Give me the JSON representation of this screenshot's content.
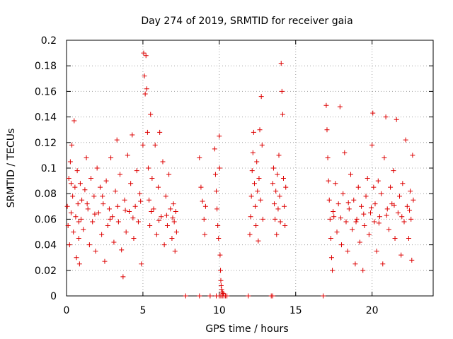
{
  "chart_data": {
    "type": "scatter",
    "title": "Day 274 of 2019, SRMTID for receiver gaia",
    "xlabel": "GPS time / hours",
    "ylabel": "SRMTID / TECUs",
    "xlim": [
      0,
      24
    ],
    "ylim": [
      0,
      0.2
    ],
    "x_ticks": [
      0,
      5,
      10,
      15,
      20
    ],
    "x_tick_labels": [
      "0",
      "5",
      "10",
      "15",
      "20"
    ],
    "y_ticks": [
      0,
      0.02,
      0.04,
      0.06,
      0.08,
      0.1,
      0.12,
      0.14,
      0.16,
      0.18,
      0.2
    ],
    "y_tick_labels": [
      "0",
      "0.02",
      "0.04",
      "0.06",
      "0.08",
      "0.1",
      "0.12",
      "0.14",
      "0.16",
      "0.18",
      "0.2"
    ],
    "grid": true,
    "marker": "+",
    "color": "#dd0000",
    "series": [
      {
        "name": "SRMTID",
        "points": [
          [
            0.05,
            0.07
          ],
          [
            0.1,
            0.055
          ],
          [
            0.15,
            0.092
          ],
          [
            0.2,
            0.04
          ],
          [
            0.25,
            0.105
          ],
          [
            0.3,
            0.065
          ],
          [
            0.35,
            0.118
          ],
          [
            0.4,
            0.078
          ],
          [
            0.45,
            0.05
          ],
          [
            0.5,
            0.137
          ],
          [
            0.55,
            0.085
          ],
          [
            0.6,
            0.062
          ],
          [
            0.65,
            0.03
          ],
          [
            0.7,
            0.098
          ],
          [
            0.75,
            0.072
          ],
          [
            0.8,
            0.045
          ],
          [
            0.85,
            0.025
          ],
          [
            0.9,
            0.088
          ],
          [
            0.95,
            0.06
          ],
          [
            1.0,
            0.075
          ],
          [
            1.1,
            0.052
          ],
          [
            1.2,
            0.083
          ],
          [
            1.3,
            0.108
          ],
          [
            1.4,
            0.068
          ],
          [
            1.5,
            0.04
          ],
          [
            1.6,
            0.092
          ],
          [
            1.7,
            0.058
          ],
          [
            1.8,
            0.078
          ],
          [
            1.9,
            0.035
          ],
          [
            2.0,
            0.1
          ],
          [
            2.1,
            0.065
          ],
          [
            2.2,
            0.085
          ],
          [
            2.3,
            0.048
          ],
          [
            2.4,
            0.072
          ],
          [
            2.5,
            0.027
          ],
          [
            2.6,
            0.09
          ],
          [
            2.7,
            0.055
          ],
          [
            2.8,
            0.068
          ],
          [
            2.9,
            0.108
          ],
          [
            3.0,
            0.062
          ],
          [
            3.1,
            0.042
          ],
          [
            3.2,
            0.082
          ],
          [
            3.3,
            0.122
          ],
          [
            3.4,
            0.058
          ],
          [
            3.5,
            0.095
          ],
          [
            3.6,
            0.036
          ],
          [
            3.7,
            0.015
          ],
          [
            3.8,
            0.075
          ],
          [
            3.9,
            0.05
          ],
          [
            4.0,
            0.11
          ],
          [
            4.1,
            0.066
          ],
          [
            4.2,
            0.088
          ],
          [
            4.3,
            0.126
          ],
          [
            4.4,
            0.045
          ],
          [
            4.5,
            0.07
          ],
          [
            4.6,
            0.098
          ],
          [
            4.7,
            0.058
          ],
          [
            4.8,
            0.08
          ],
          [
            4.9,
            0.025
          ],
          [
            5.0,
            0.118
          ],
          [
            5.05,
            0.19
          ],
          [
            5.1,
            0.172
          ],
          [
            5.15,
            0.158
          ],
          [
            5.2,
            0.188
          ],
          [
            5.25,
            0.162
          ],
          [
            5.3,
            0.128
          ],
          [
            5.35,
            0.1
          ],
          [
            5.4,
            0.075
          ],
          [
            5.45,
            0.055
          ],
          [
            5.5,
            0.142
          ],
          [
            5.6,
            0.092
          ],
          [
            5.7,
            0.068
          ],
          [
            5.8,
            0.118
          ],
          [
            5.9,
            0.048
          ],
          [
            6.0,
            0.085
          ],
          [
            6.1,
            0.128
          ],
          [
            6.2,
            0.062
          ],
          [
            6.3,
            0.105
          ],
          [
            6.4,
            0.04
          ],
          [
            6.5,
            0.078
          ],
          [
            6.6,
            0.055
          ],
          [
            6.7,
            0.095
          ],
          [
            6.8,
            0.068
          ],
          [
            6.9,
            0.045
          ],
          [
            7.0,
            0.072
          ],
          [
            7.05,
            0.058
          ],
          [
            7.1,
            0.035
          ],
          [
            7.15,
            0.066
          ],
          [
            7.2,
            0.05
          ],
          [
            0.3,
            0.088
          ],
          [
            0.8,
            0.058
          ],
          [
            1.35,
            0.072
          ],
          [
            1.85,
            0.064
          ],
          [
            2.35,
            0.078
          ],
          [
            2.85,
            0.06
          ],
          [
            3.35,
            0.07
          ],
          [
            3.85,
            0.067
          ],
          [
            4.35,
            0.061
          ],
          [
            4.85,
            0.074
          ],
          [
            5.55,
            0.066
          ],
          [
            6.05,
            0.059
          ],
          [
            6.55,
            0.063
          ],
          [
            6.95,
            0.061
          ],
          [
            8.7,
            0.108
          ],
          [
            8.8,
            0.085
          ],
          [
            8.9,
            0.074
          ],
          [
            9.0,
            0.06
          ],
          [
            9.05,
            0.048
          ],
          [
            9.1,
            0.07
          ],
          [
            9.7,
            0.115
          ],
          [
            9.75,
            0.095
          ],
          [
            9.8,
            0.082
          ],
          [
            9.85,
            0.068
          ],
          [
            9.9,
            0.055
          ],
          [
            9.95,
            0.045
          ],
          [
            10.0,
            0.125
          ],
          [
            10.02,
            0.1
          ],
          [
            10.05,
            0.032
          ],
          [
            10.08,
            0.02
          ],
          [
            10.1,
            0.012
          ],
          [
            10.12,
            0.008
          ],
          [
            10.15,
            0.005
          ],
          [
            10.2,
            0.003
          ],
          [
            10.25,
            0.002
          ],
          [
            12.0,
            0.048
          ],
          [
            12.05,
            0.062
          ],
          [
            12.1,
            0.078
          ],
          [
            12.15,
            0.098
          ],
          [
            12.2,
            0.112
          ],
          [
            12.25,
            0.128
          ],
          [
            12.3,
            0.088
          ],
          [
            12.35,
            0.07
          ],
          [
            12.4,
            0.055
          ],
          [
            12.45,
            0.105
          ],
          [
            12.5,
            0.082
          ],
          [
            12.55,
            0.043
          ],
          [
            12.6,
            0.092
          ],
          [
            12.65,
            0.13
          ],
          [
            12.7,
            0.075
          ],
          [
            12.75,
            0.156
          ],
          [
            12.8,
            0.118
          ],
          [
            12.85,
            0.06
          ],
          [
            13.5,
            0.088
          ],
          [
            13.55,
            0.1
          ],
          [
            13.6,
            0.072
          ],
          [
            13.65,
            0.06
          ],
          [
            13.7,
            0.082
          ],
          [
            13.75,
            0.048
          ],
          [
            13.8,
            0.095
          ],
          [
            13.85,
            0.068
          ],
          [
            13.9,
            0.11
          ],
          [
            13.95,
            0.078
          ],
          [
            14.0,
            0.058
          ],
          [
            14.05,
            0.182
          ],
          [
            14.1,
            0.16
          ],
          [
            14.15,
            0.142
          ],
          [
            14.2,
            0.092
          ],
          [
            14.25,
            0.07
          ],
          [
            14.3,
            0.055
          ],
          [
            14.35,
            0.085
          ],
          [
            17.0,
            0.149
          ],
          [
            17.05,
            0.13
          ],
          [
            17.1,
            0.108
          ],
          [
            17.15,
            0.09
          ],
          [
            17.2,
            0.075
          ],
          [
            17.25,
            0.06
          ],
          [
            17.3,
            0.045
          ],
          [
            17.35,
            0.03
          ],
          [
            17.4,
            0.02
          ],
          [
            17.5,
            0.062
          ],
          [
            17.6,
            0.088
          ],
          [
            17.7,
            0.05
          ],
          [
            17.8,
            0.072
          ],
          [
            17.9,
            0.148
          ],
          [
            18.0,
            0.04
          ],
          [
            18.1,
            0.08
          ],
          [
            18.2,
            0.112
          ],
          [
            18.3,
            0.058
          ],
          [
            18.4,
            0.035
          ],
          [
            18.5,
            0.068
          ],
          [
            18.6,
            0.095
          ],
          [
            18.7,
            0.052
          ],
          [
            18.8,
            0.075
          ],
          [
            18.9,
            0.025
          ],
          [
            19.0,
            0.06
          ],
          [
            19.1,
            0.085
          ],
          [
            19.2,
            0.042
          ],
          [
            19.3,
            0.07
          ],
          [
            19.4,
            0.02
          ],
          [
            19.5,
            0.055
          ],
          [
            19.6,
            0.078
          ],
          [
            19.7,
            0.092
          ],
          [
            19.8,
            0.048
          ],
          [
            19.9,
            0.065
          ],
          [
            20.0,
            0.118
          ],
          [
            20.05,
            0.143
          ],
          [
            20.1,
            0.085
          ],
          [
            20.15,
            0.058
          ],
          [
            20.2,
            0.072
          ],
          [
            20.3,
            0.035
          ],
          [
            20.4,
            0.09
          ],
          [
            20.5,
            0.062
          ],
          [
            20.6,
            0.08
          ],
          [
            20.7,
            0.025
          ],
          [
            20.8,
            0.108
          ],
          [
            20.9,
            0.14
          ],
          [
            21.0,
            0.068
          ],
          [
            21.1,
            0.052
          ],
          [
            21.2,
            0.085
          ],
          [
            21.3,
            0.072
          ],
          [
            21.4,
            0.098
          ],
          [
            21.5,
            0.045
          ],
          [
            21.6,
            0.138
          ],
          [
            21.7,
            0.065
          ],
          [
            21.8,
            0.078
          ],
          [
            21.9,
            0.032
          ],
          [
            22.0,
            0.088
          ],
          [
            22.1,
            0.058
          ],
          [
            22.2,
            0.122
          ],
          [
            22.3,
            0.07
          ],
          [
            22.4,
            0.045
          ],
          [
            22.5,
            0.082
          ],
          [
            22.55,
            0.06
          ],
          [
            22.6,
            0.028
          ],
          [
            22.65,
            0.11
          ],
          [
            22.7,
            0.075
          ],
          [
            17.45,
            0.066
          ],
          [
            17.95,
            0.061
          ],
          [
            18.45,
            0.073
          ],
          [
            18.95,
            0.058
          ],
          [
            19.45,
            0.064
          ],
          [
            19.95,
            0.069
          ],
          [
            20.45,
            0.057
          ],
          [
            20.95,
            0.063
          ],
          [
            21.45,
            0.071
          ],
          [
            21.95,
            0.062
          ],
          [
            22.45,
            0.067
          ]
        ]
      },
      {
        "name": "zero-level markers",
        "points": [
          [
            7.8,
            0
          ],
          [
            8.7,
            0
          ],
          [
            9.4,
            0
          ],
          [
            9.8,
            0
          ],
          [
            10.0,
            0
          ],
          [
            10.1,
            0
          ],
          [
            10.2,
            0
          ],
          [
            10.3,
            0
          ],
          [
            10.4,
            0
          ],
          [
            10.5,
            0
          ],
          [
            11.9,
            0
          ],
          [
            13.4,
            0
          ],
          [
            13.5,
            0
          ],
          [
            16.8,
            0
          ]
        ]
      }
    ]
  }
}
